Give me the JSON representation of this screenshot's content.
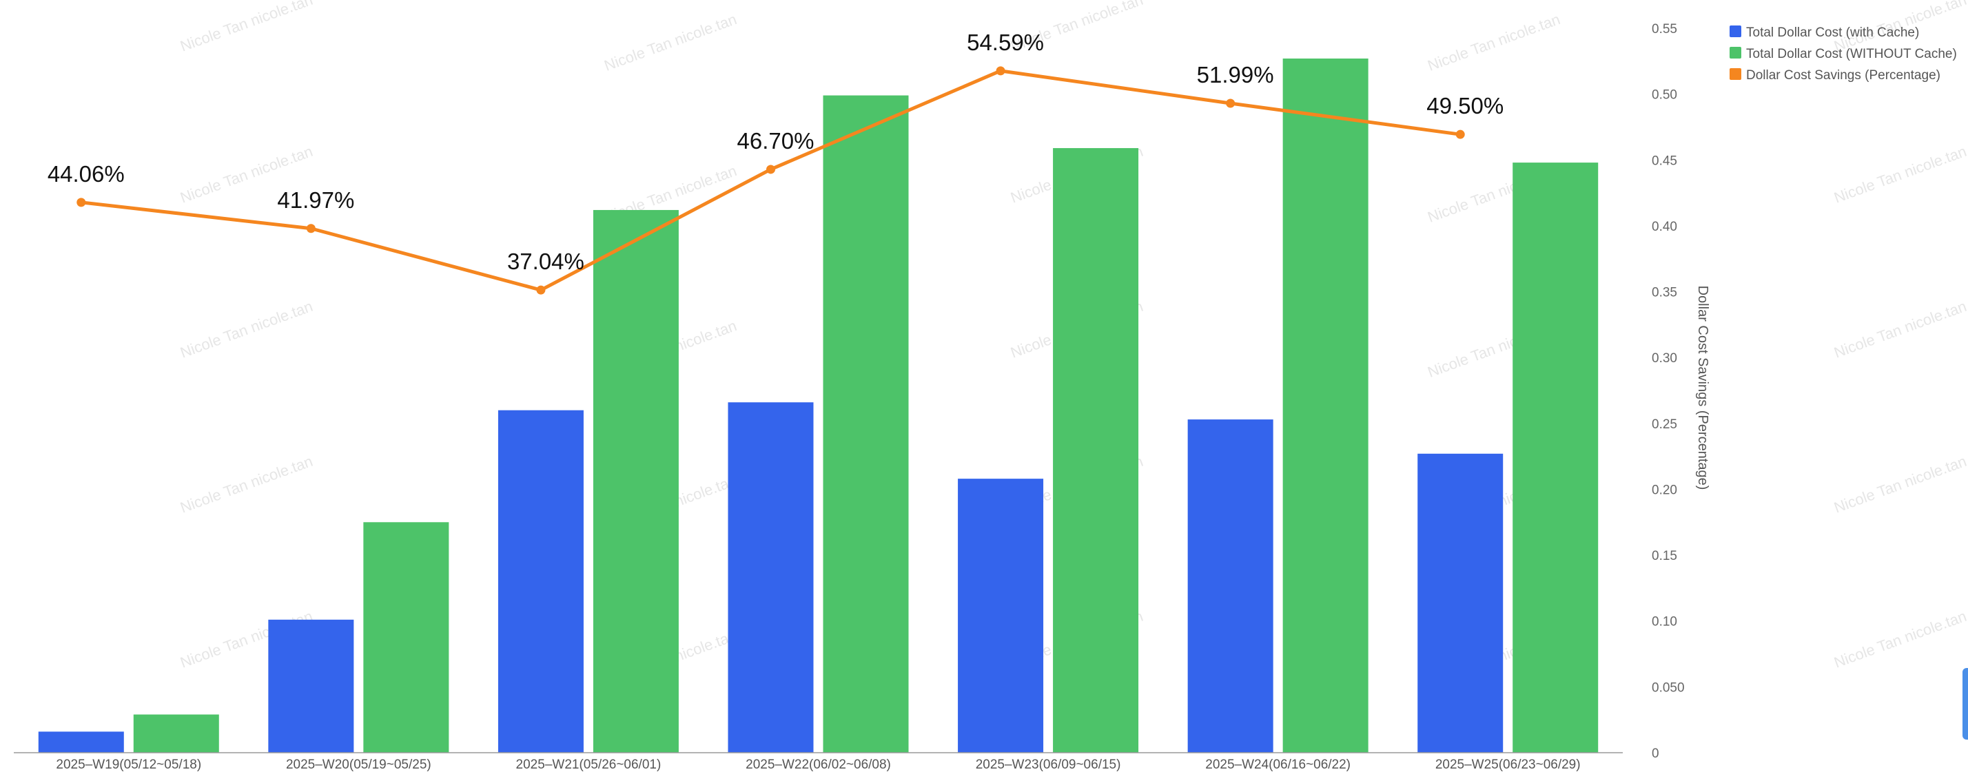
{
  "chart_data": {
    "type": "bar",
    "categories": [
      "2025–W19(05/12~05/18)",
      "2025–W20(05/19~05/25)",
      "2025–W21(05/26~06/01)",
      "2025–W22(06/02~06/08)",
      "2025–W23(06/09~06/15)",
      "2025–W24(06/16~06/22)",
      "2025–W25(06/23~06/29)"
    ],
    "series": [
      {
        "name": "Total Dollar Cost (with Cache)",
        "type": "bar",
        "color": "#3464EC",
        "values": [
          0.016,
          0.101,
          0.26,
          0.266,
          0.208,
          0.253,
          0.227
        ]
      },
      {
        "name": "Total Dollar Cost (WITHOUT Cache)",
        "type": "bar",
        "color": "#4DC369",
        "values": [
          0.029,
          0.175,
          0.412,
          0.499,
          0.459,
          0.527,
          0.448
        ]
      },
      {
        "name": "Dollar Cost Savings (Percentage)",
        "type": "line",
        "color": "#F5861F",
        "values": [
          44.06,
          41.97,
          37.04,
          46.7,
          54.59,
          51.99,
          49.5
        ],
        "labels": [
          "44.06%",
          "41.97%",
          "37.04%",
          "46.70%",
          "54.59%",
          "51.99%",
          "49.50%"
        ]
      }
    ],
    "y_axis": {
      "title": "Dollar Cost Savings (Percentage)",
      "ticks": [
        "0.55",
        "0.50",
        "0.45",
        "0.40",
        "0.35",
        "0.30",
        "0.25",
        "0.20",
        "0.15",
        "0.10",
        "0.050",
        "0"
      ],
      "range": [
        0,
        0.55
      ],
      "position": "right"
    },
    "line_range": [
      0,
      58
    ],
    "legend_position": "top-right",
    "grid": false,
    "watermark": "Nicole Tan nicole.tan"
  }
}
